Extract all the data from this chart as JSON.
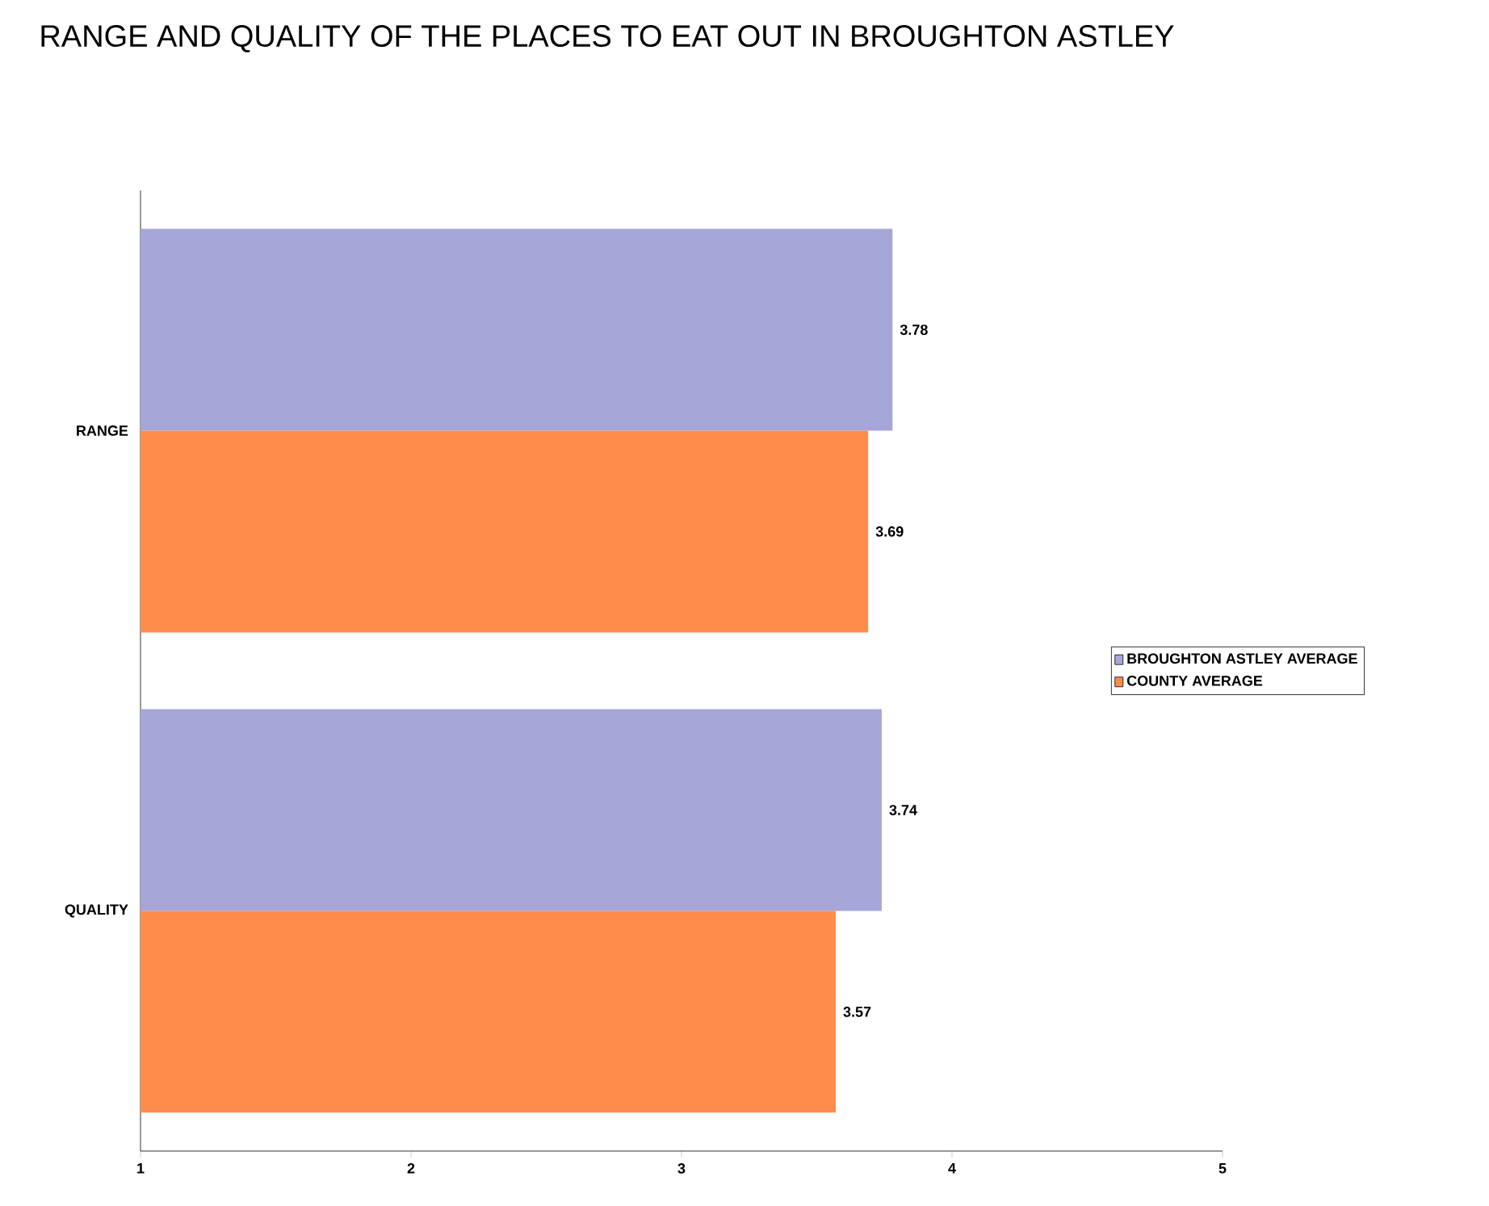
{
  "chart_data": {
    "type": "bar",
    "orientation": "horizontal",
    "title": "RANGE AND QUALITY OF THE PLACES TO EAT OUT IN BROUGHTON ASTLEY",
    "categories": [
      "RANGE",
      "QUALITY"
    ],
    "series": [
      {
        "name": "BROUGHTON ASTLEY AVERAGE",
        "color": "#a6a6d9",
        "values": [
          3.78,
          3.74
        ]
      },
      {
        "name": "COUNTY AVERAGE",
        "color": "#ff8c4a",
        "values": [
          3.69,
          3.57
        ]
      }
    ],
    "xlim": [
      1,
      5
    ],
    "xticks": [
      1,
      2,
      3,
      4,
      5
    ],
    "data_labels": true,
    "legend": "right"
  }
}
